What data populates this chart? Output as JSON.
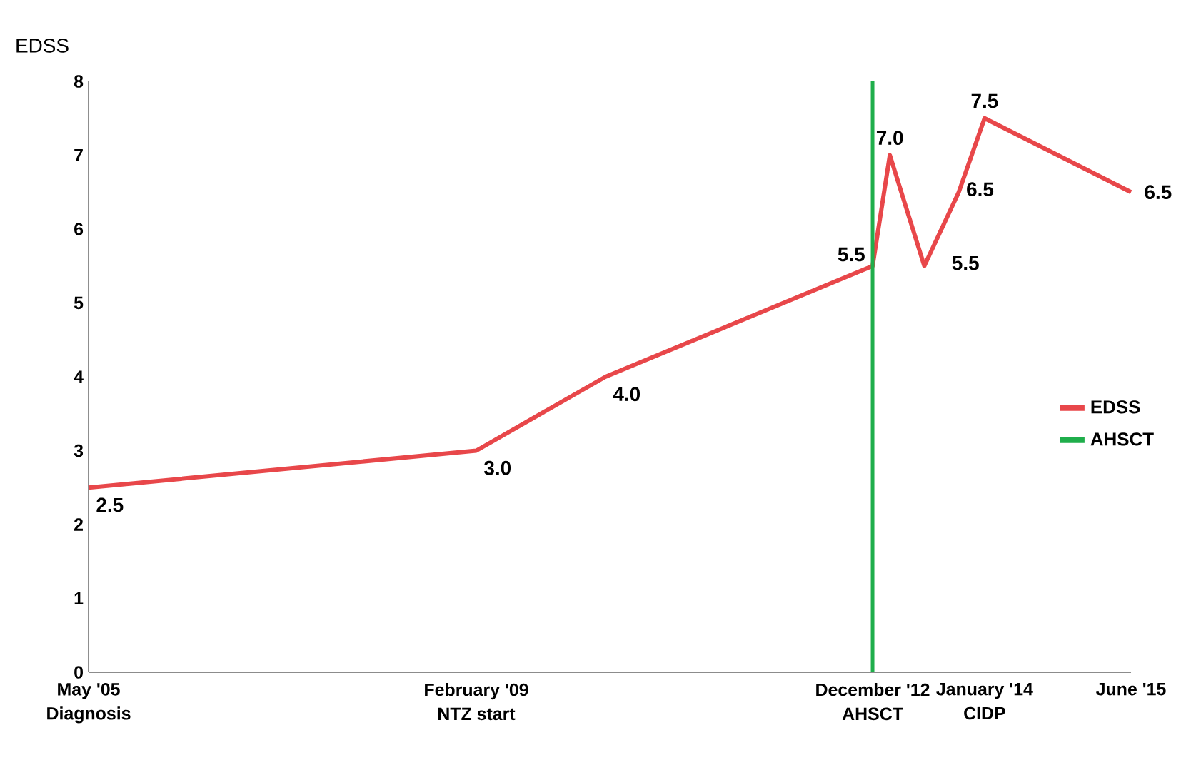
{
  "chart_data": {
    "type": "line",
    "ylabel": "EDSS",
    "x": [
      "2005-05",
      "2009-02",
      "2010-05",
      "2012-12",
      "2013-02",
      "2013-06",
      "2013-10",
      "2014-01",
      "2015-06"
    ],
    "xlim": [
      "2005-05",
      "2015-06"
    ],
    "xticks": [
      {
        "value": "2005-05",
        "label": "May '05 Diagnosis"
      },
      {
        "value": "2009-02",
        "label": "February '09 NTZ start"
      },
      {
        "value": "2012-12",
        "label": "December '12 AHSCT"
      },
      {
        "value": "2014-01",
        "label": "January '14 CIDP"
      },
      {
        "value": "2015-06",
        "label": "June '15"
      }
    ],
    "ylim": [
      0,
      8
    ],
    "yticks": [
      0,
      1,
      2,
      3,
      4,
      5,
      6,
      7,
      8
    ],
    "series": [
      {
        "name": "EDSS",
        "color": "#e8474a",
        "values": [
          2.5,
          3,
          4,
          5.5,
          7,
          5.5,
          6.5,
          7.5,
          6.5
        ],
        "value_labels": [
          "2.5",
          "3.0",
          "4.0",
          "5.5",
          "7.0",
          "5.5",
          "6.5",
          "7.5",
          "6.5"
        ]
      },
      {
        "name": "AHSCT",
        "color": "#1fae4b",
        "x": [
          "2012-12",
          "2012-12"
        ],
        "values": [
          0,
          8
        ]
      }
    ],
    "legend": "right"
  }
}
